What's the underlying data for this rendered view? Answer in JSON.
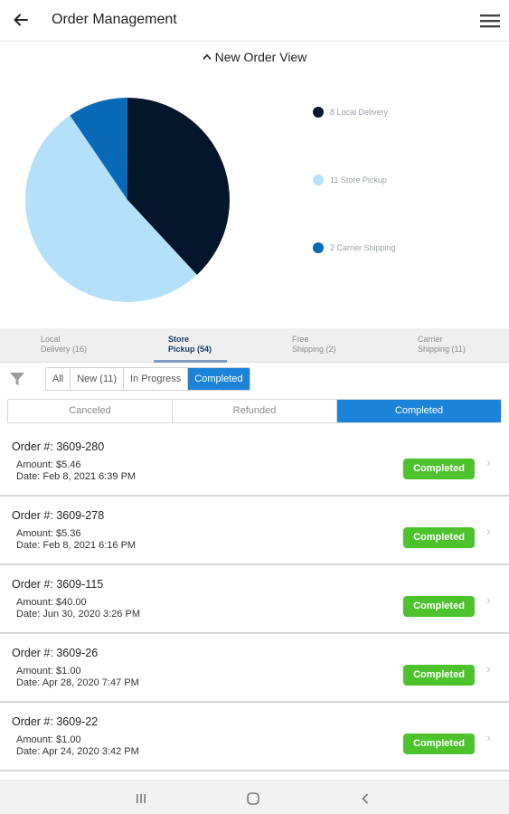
{
  "header": {
    "title": "Order Management"
  },
  "view_toggle": {
    "label": "New Order View"
  },
  "chart_data": {
    "type": "pie",
    "slices": [
      {
        "label": "8 Local Delivery",
        "value": 8,
        "color": "#03162c"
      },
      {
        "label": "11 Store Pickup",
        "value": 11,
        "color": "#b5e0fa"
      },
      {
        "label": "2 Carrier Shipping",
        "value": 2,
        "color": "#0869b6"
      }
    ]
  },
  "type_tabs": [
    {
      "line1": "Local",
      "line2": "Delivery (16)"
    },
    {
      "line1": "Store",
      "line2": "Pickup (54)"
    },
    {
      "line1": "Free",
      "line2": "Shipping (2)"
    },
    {
      "line1": "Carrier",
      "line2": "Shipping (11)"
    }
  ],
  "filters": {
    "all": "All",
    "new": "New (11)",
    "in_progress": "In Progress",
    "completed": "Completed"
  },
  "status": {
    "canceled": "Canceled",
    "refunded": "Refunded",
    "completed": "Completed"
  },
  "orders": [
    {
      "number": "Order #: 3609-280",
      "amount": "Amount: $5.46",
      "date": "Date: Feb 8, 2021 6:39 PM",
      "status": "Completed"
    },
    {
      "number": "Order #: 3609-278",
      "amount": "Amount: $5.36",
      "date": "Date: Feb 8, 2021 6:16 PM",
      "status": "Completed"
    },
    {
      "number": "Order #: 3609-115",
      "amount": "Amount: $40.00",
      "date": "Date: Jun 30, 2020 3:26 PM",
      "status": "Completed"
    },
    {
      "number": "Order #: 3609-26",
      "amount": "Amount: $1.00",
      "date": "Date: Apr 28, 2020 7:47 PM",
      "status": "Completed"
    },
    {
      "number": "Order #: 3609-22",
      "amount": "Amount: $1.00",
      "date": "Date: Apr 24, 2020 3:42 PM",
      "status": "Completed"
    }
  ],
  "colors": {
    "accent": "#1d83d8",
    "badge": "#4cc32d",
    "tab_active": "#1c3e66"
  }
}
